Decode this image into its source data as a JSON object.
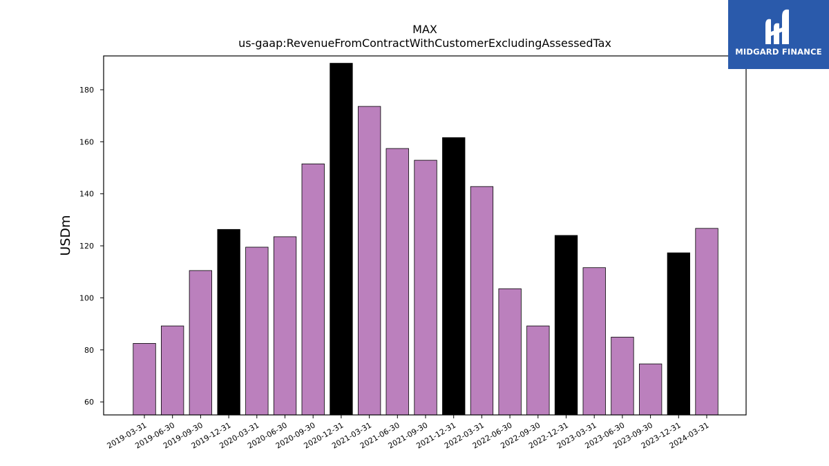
{
  "chart_data": {
    "type": "bar",
    "title": "MAX",
    "subtitle": "us-gaap:RevenueFromContractWithCustomerExcludingAssessedTax",
    "xlabel": "",
    "ylabel": "USDm",
    "ylim": [
      55,
      193
    ],
    "yticks": [
      60,
      80,
      100,
      120,
      140,
      160,
      180
    ],
    "categories": [
      "2019-03-31",
      "2019-06-30",
      "2019-09-30",
      "2019-12-31",
      "2020-03-31",
      "2020-06-30",
      "2020-09-30",
      "2020-12-31",
      "2021-03-31",
      "2021-06-30",
      "2021-09-30",
      "2021-12-31",
      "2022-03-31",
      "2022-06-30",
      "2022-09-30",
      "2022-12-31",
      "2023-03-31",
      "2023-06-30",
      "2023-09-30",
      "2023-12-31",
      "2024-03-31"
    ],
    "values": [
      82.5,
      89.2,
      110.5,
      126.3,
      119.5,
      123.5,
      151.5,
      190.2,
      173.6,
      157.4,
      152.9,
      161.6,
      142.8,
      103.5,
      89.2,
      124.0,
      111.6,
      84.9,
      74.6,
      117.3,
      126.7
    ],
    "bar_colors": [
      "#bb80bd",
      "#bb80bd",
      "#bb80bd",
      "#000000",
      "#bb80bd",
      "#bb80bd",
      "#bb80bd",
      "#000000",
      "#bb80bd",
      "#bb80bd",
      "#bb80bd",
      "#000000",
      "#bb80bd",
      "#bb80bd",
      "#bb80bd",
      "#000000",
      "#bb80bd",
      "#bb80bd",
      "#bb80bd",
      "#000000",
      "#bb80bd"
    ],
    "grid": false,
    "legend": "none"
  },
  "colors": {
    "quarter_bar": "#bb80bd",
    "year_end_bar": "#000000",
    "logo_bg": "#2a5aab"
  },
  "logo": {
    "text": "MIDGARD FINANCE",
    "icon": "midgard-logo-icon"
  }
}
